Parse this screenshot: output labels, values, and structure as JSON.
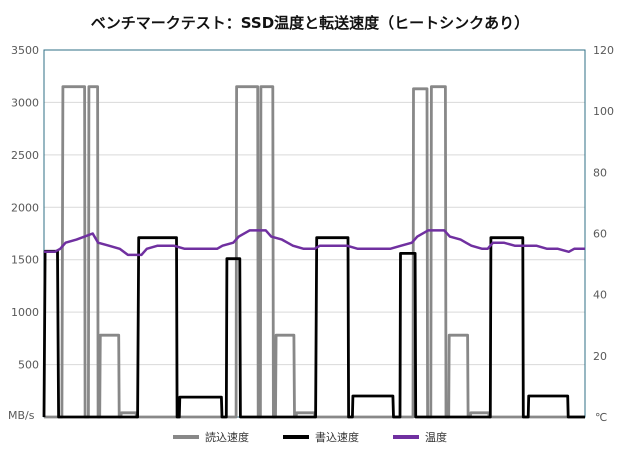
{
  "chart_data": {
    "type": "line",
    "title": "ベンチマークテスト：SSD温度と転送速度（ヒートシンクあり）",
    "y_left_unit": "MB/s",
    "y_right_unit": "℃",
    "ylim_left": [
      0,
      3500
    ],
    "ylim_right": [
      0,
      120
    ],
    "y_left_ticks": [
      "0",
      "500",
      "1000",
      "1500",
      "2000",
      "2500",
      "3000",
      "3500"
    ],
    "y_right_ticks": [
      "0",
      "20",
      "40",
      "60",
      "80",
      "100",
      "120"
    ],
    "grid": true,
    "legend_position": "bottom",
    "x_range": [
      0,
      100
    ],
    "series": [
      {
        "name": "読込速度",
        "axis": "left",
        "color": "#888888",
        "points": [
          [
            0,
            0
          ],
          [
            3.3,
            0
          ],
          [
            3.5,
            3150
          ],
          [
            7.5,
            3150
          ],
          [
            7.6,
            0
          ],
          [
            8.2,
            0
          ],
          [
            8.3,
            3150
          ],
          [
            9.9,
            3150
          ],
          [
            10,
            0
          ],
          [
            10.3,
            0
          ],
          [
            10.4,
            780
          ],
          [
            13.8,
            780
          ],
          [
            13.9,
            0
          ],
          [
            14.2,
            0
          ],
          [
            14.3,
            40
          ],
          [
            17,
            40
          ],
          [
            17.1,
            0
          ],
          [
            35.5,
            0
          ],
          [
            35.6,
            3150
          ],
          [
            39.5,
            3150
          ],
          [
            39.6,
            0
          ],
          [
            40,
            0
          ],
          [
            40.1,
            3150
          ],
          [
            42.3,
            3150
          ],
          [
            42.4,
            0
          ],
          [
            42.8,
            0
          ],
          [
            42.9,
            780
          ],
          [
            46.2,
            780
          ],
          [
            46.3,
            0
          ],
          [
            46.6,
            0
          ],
          [
            46.7,
            40
          ],
          [
            50,
            40
          ],
          [
            50.1,
            0
          ],
          [
            68.2,
            0
          ],
          [
            68.3,
            3130
          ],
          [
            70.8,
            3130
          ],
          [
            70.9,
            0
          ],
          [
            71.5,
            0
          ],
          [
            71.6,
            3150
          ],
          [
            74.2,
            3150
          ],
          [
            74.3,
            0
          ],
          [
            74.8,
            0
          ],
          [
            74.9,
            780
          ],
          [
            78.3,
            780
          ],
          [
            78.4,
            0
          ],
          [
            78.8,
            0
          ],
          [
            78.9,
            40
          ],
          [
            82.2,
            40
          ],
          [
            82.3,
            0
          ],
          [
            100,
            0
          ]
        ]
      },
      {
        "name": "書込速度",
        "axis": "left",
        "color": "#000000",
        "points": [
          [
            0,
            0
          ],
          [
            0.2,
            1580
          ],
          [
            2.5,
            1580
          ],
          [
            2.7,
            0
          ],
          [
            17.3,
            0
          ],
          [
            17.5,
            1710
          ],
          [
            24.5,
            1710
          ],
          [
            24.6,
            0
          ],
          [
            25,
            0
          ],
          [
            25.1,
            190
          ],
          [
            32.8,
            190
          ],
          [
            32.9,
            0
          ],
          [
            33.7,
            0
          ],
          [
            33.8,
            1510
          ],
          [
            36.2,
            1510
          ],
          [
            36.3,
            0
          ],
          [
            50.2,
            0
          ],
          [
            50.4,
            1710
          ],
          [
            56.2,
            1710
          ],
          [
            56.3,
            0
          ],
          [
            57,
            0
          ],
          [
            57.1,
            200
          ],
          [
            64.5,
            200
          ],
          [
            64.6,
            0
          ],
          [
            65.8,
            0
          ],
          [
            65.9,
            1560
          ],
          [
            68.6,
            1560
          ],
          [
            68.7,
            0
          ],
          [
            82.5,
            0
          ],
          [
            82.6,
            1710
          ],
          [
            88.5,
            1710
          ],
          [
            88.6,
            0
          ],
          [
            89.5,
            0
          ],
          [
            89.6,
            200
          ],
          [
            96.8,
            200
          ],
          [
            96.9,
            0
          ],
          [
            100,
            0
          ]
        ]
      },
      {
        "name": "温度",
        "axis": "right",
        "color": "#7030a0",
        "points": [
          [
            0,
            54
          ],
          [
            2,
            54
          ],
          [
            3,
            55
          ],
          [
            4,
            57
          ],
          [
            6,
            58
          ],
          [
            7.5,
            59
          ],
          [
            9,
            60
          ],
          [
            10,
            57
          ],
          [
            12,
            56
          ],
          [
            14,
            55
          ],
          [
            15.5,
            53
          ],
          [
            18,
            53
          ],
          [
            19,
            55
          ],
          [
            21,
            56
          ],
          [
            24,
            56
          ],
          [
            26,
            55
          ],
          [
            28,
            55
          ],
          [
            30,
            55
          ],
          [
            32,
            55
          ],
          [
            33,
            56
          ],
          [
            35,
            57
          ],
          [
            36,
            59
          ],
          [
            38,
            61
          ],
          [
            41,
            61
          ],
          [
            42,
            59
          ],
          [
            44,
            58
          ],
          [
            45,
            57
          ],
          [
            46,
            56
          ],
          [
            48,
            55
          ],
          [
            50,
            55
          ],
          [
            51,
            56
          ],
          [
            53,
            56
          ],
          [
            56,
            56
          ],
          [
            58,
            55
          ],
          [
            60,
            55
          ],
          [
            62,
            55
          ],
          [
            64,
            55
          ],
          [
            66,
            56
          ],
          [
            68,
            57
          ],
          [
            69,
            59
          ],
          [
            71,
            61
          ],
          [
            74,
            61
          ],
          [
            75,
            59
          ],
          [
            77,
            58
          ],
          [
            78,
            57
          ],
          [
            79,
            56
          ],
          [
            81,
            55
          ],
          [
            82,
            55
          ],
          [
            83,
            57
          ],
          [
            85,
            57
          ],
          [
            87,
            56
          ],
          [
            89,
            56
          ],
          [
            91,
            56
          ],
          [
            93,
            55
          ],
          [
            95,
            55
          ],
          [
            97,
            54
          ],
          [
            98,
            55
          ],
          [
            100,
            55
          ]
        ]
      }
    ]
  }
}
